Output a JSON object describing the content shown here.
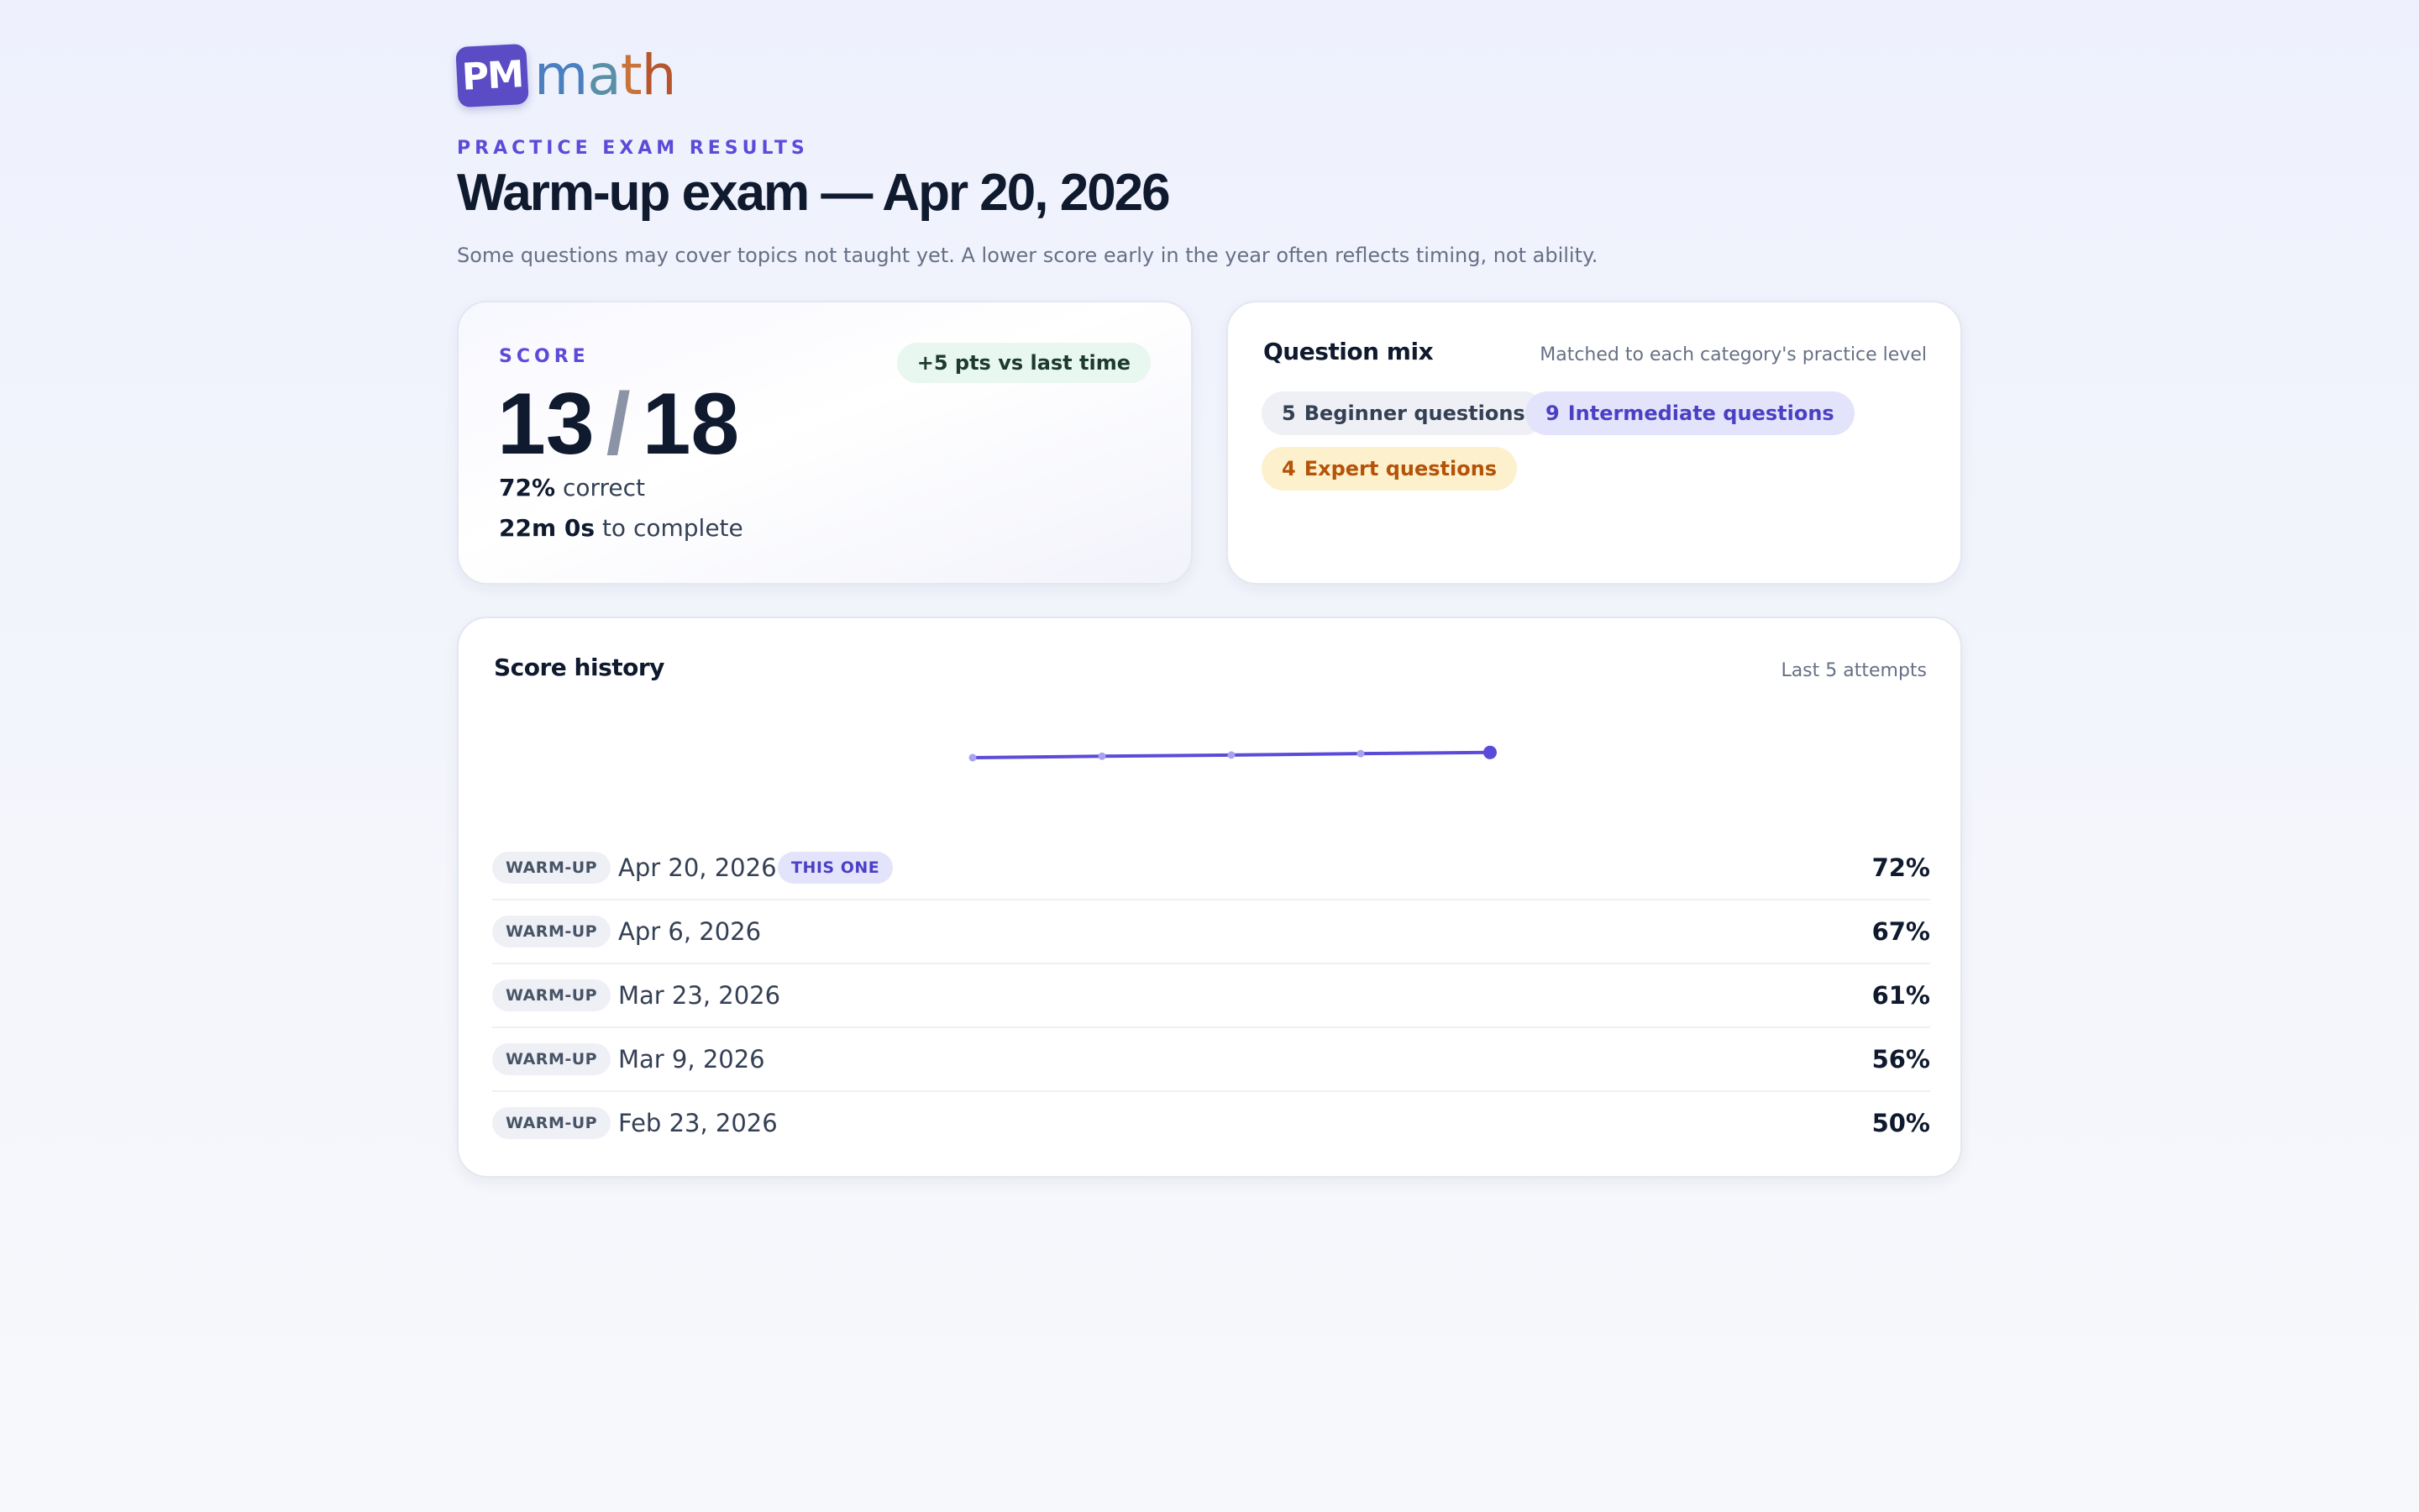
{
  "logo": {
    "badge": "PM",
    "m": "m",
    "a": "a",
    "t": "t",
    "h": "h"
  },
  "header": {
    "eyebrow": "PRACTICE EXAM RESULTS",
    "title": "Warm-up exam — Apr 20, 2026",
    "subtitle": "Some questions may cover topics not taught yet. A lower score early in the year often reflects timing, not ability."
  },
  "score": {
    "label": "SCORE",
    "correct": "13",
    "slash": "/",
    "total": "18",
    "delta": "+5 pts vs last time",
    "percent": "72%",
    "percent_suffix": "correct",
    "time": "22m 0s",
    "time_suffix": "to complete"
  },
  "question_mix": {
    "title": "Question mix",
    "note": "Matched to each category's practice level",
    "beginner": {
      "count": "5",
      "label": "Beginner questions"
    },
    "intermediate": {
      "count": "9",
      "label": "Intermediate questions"
    },
    "expert": {
      "count": "4",
      "label": "Expert questions"
    }
  },
  "history": {
    "title": "Score history",
    "note": "Last 5 attempts",
    "current_badge": "THIS ONE",
    "rows": [
      {
        "tag": "WARM-UP",
        "date": "Apr 20, 2026",
        "pct": "72%"
      },
      {
        "tag": "WARM-UP",
        "date": "Apr 6, 2026",
        "pct": "67%"
      },
      {
        "tag": "WARM-UP",
        "date": "Mar 23, 2026",
        "pct": "61%"
      },
      {
        "tag": "WARM-UP",
        "date": "Mar 9, 2026",
        "pct": "56%"
      },
      {
        "tag": "WARM-UP",
        "date": "Feb 23, 2026",
        "pct": "50%"
      }
    ]
  },
  "chart_data": {
    "type": "line",
    "x": [
      "Feb 23, 2026",
      "Mar 9, 2026",
      "Mar 23, 2026",
      "Apr 6, 2026",
      "Apr 20, 2026"
    ],
    "series": [
      {
        "values": [
          50,
          56,
          61,
          67,
          72
        ]
      }
    ],
    "color": "#5b4bd8",
    "highlight_last": true
  }
}
